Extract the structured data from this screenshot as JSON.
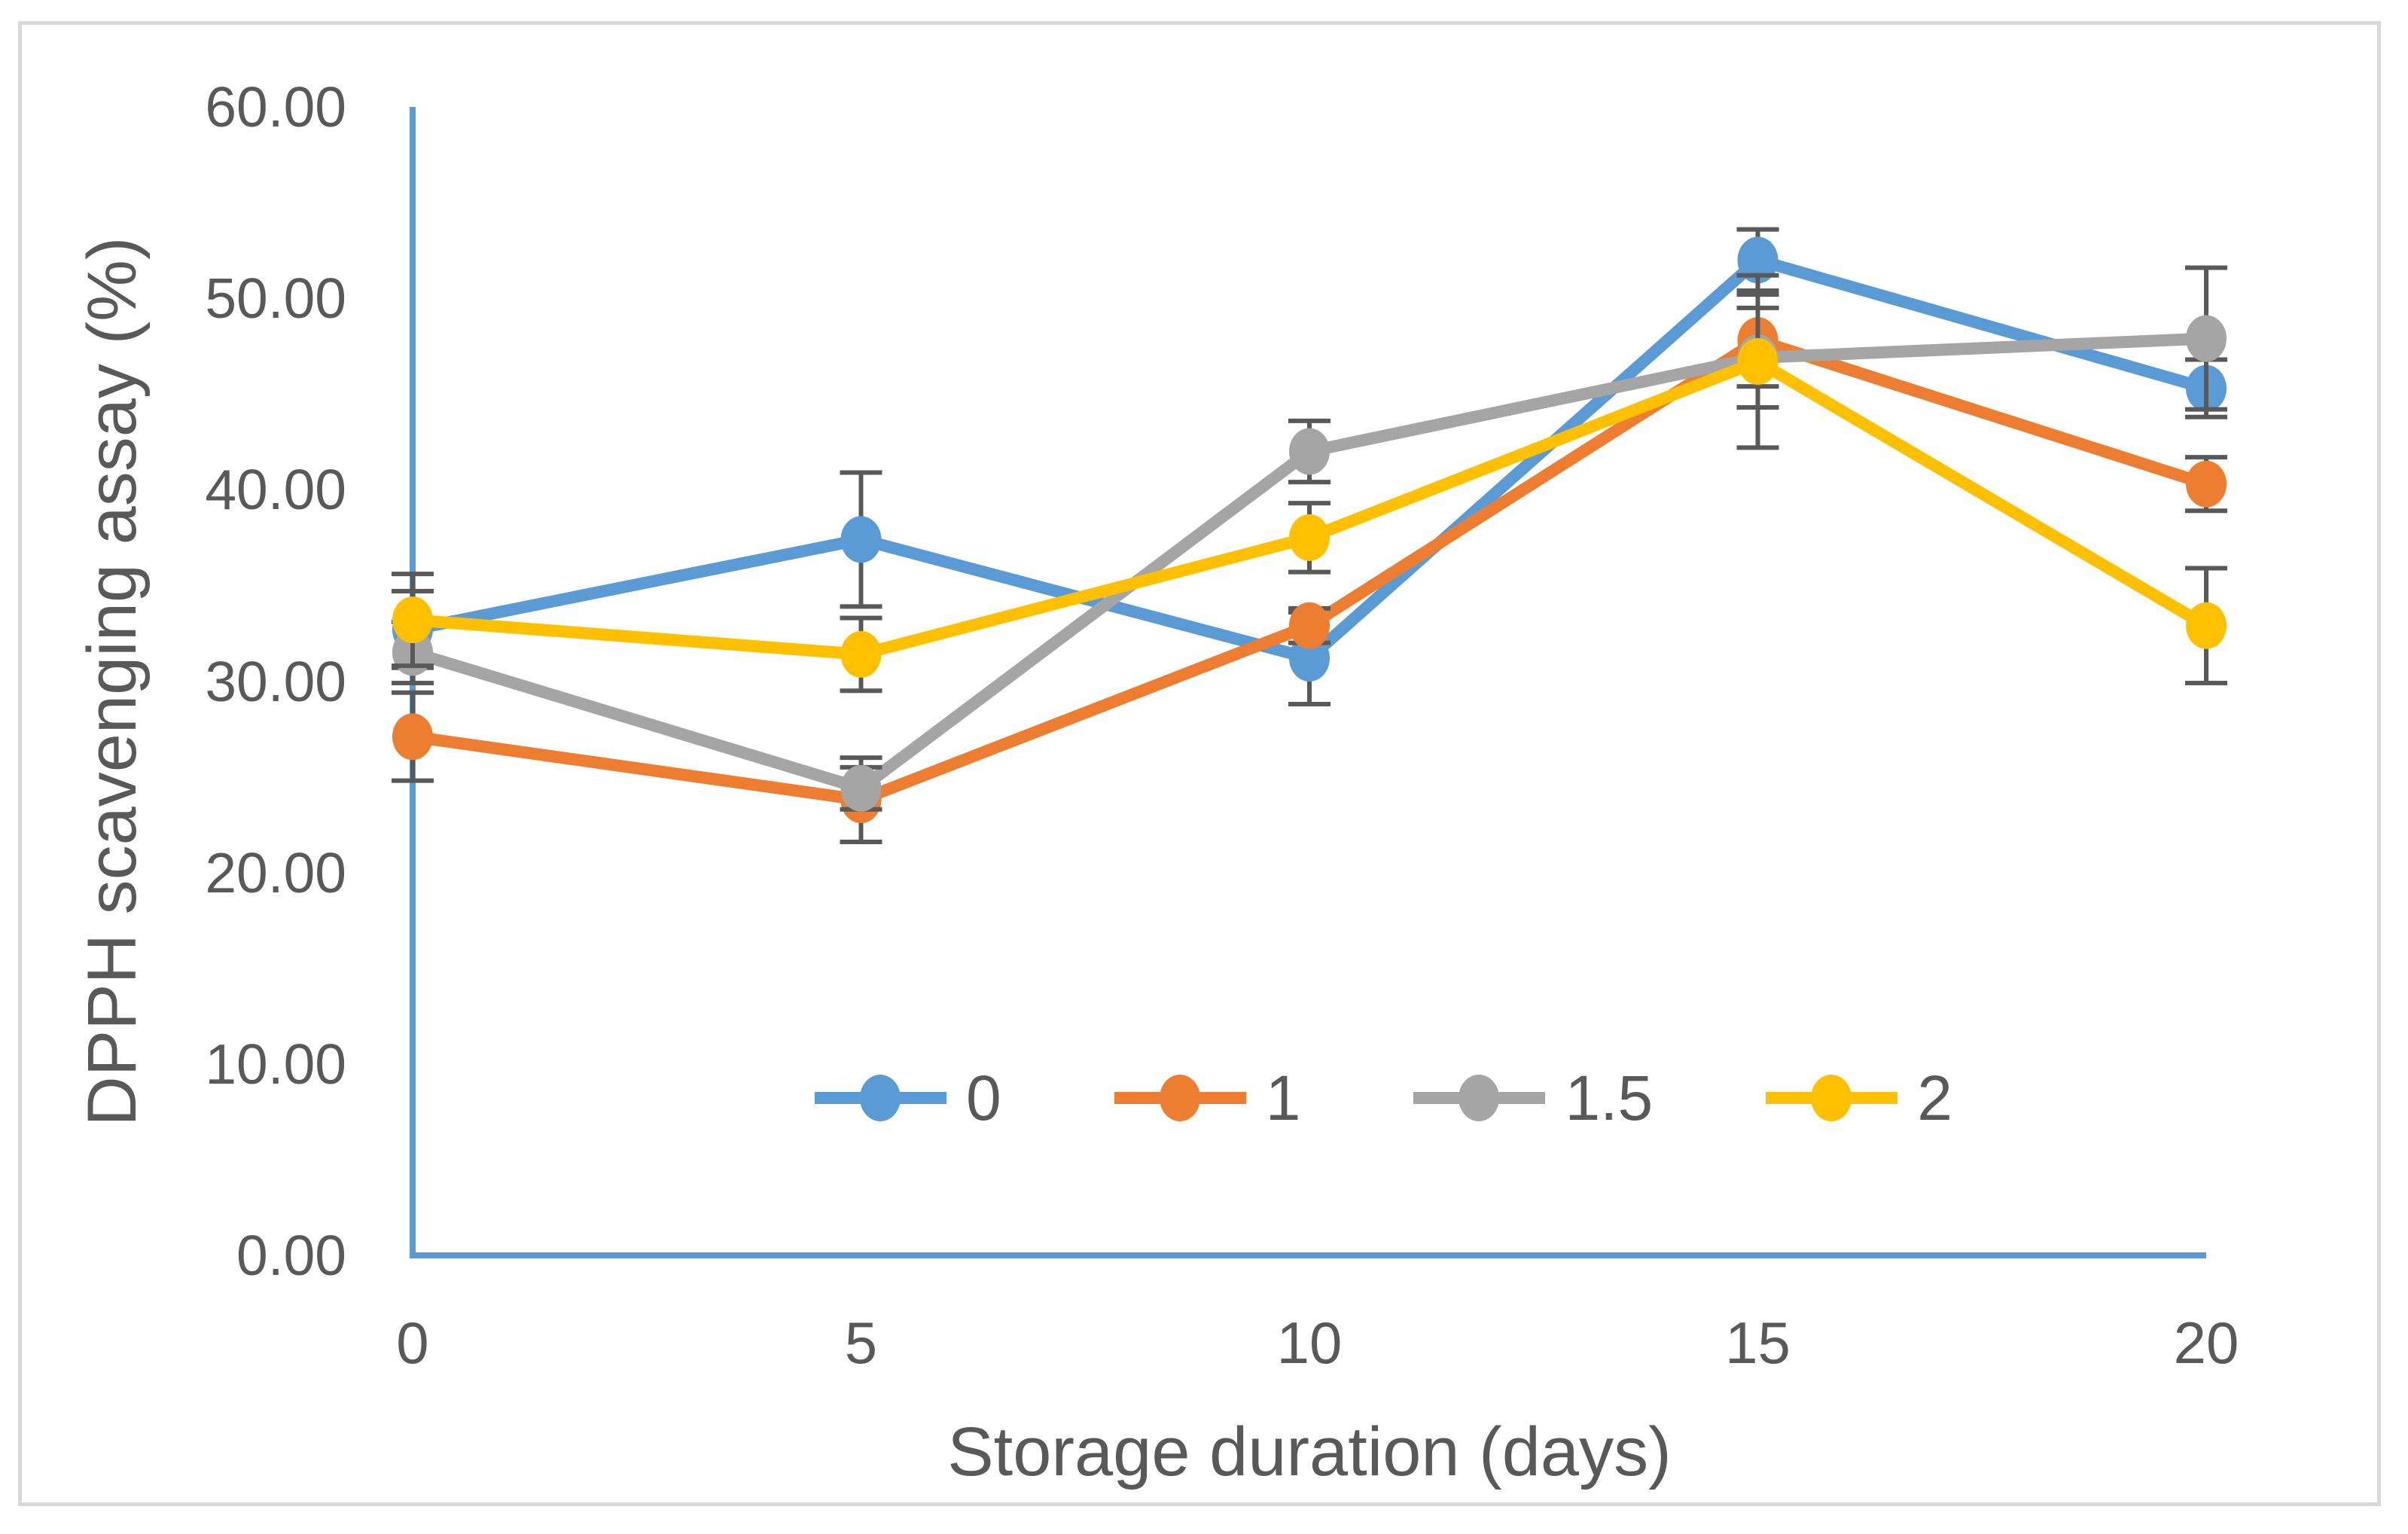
{
  "chart_data": {
    "type": "line",
    "title": "",
    "xlabel": "Storage duration (days)",
    "ylabel": "DPPH scavenging assay (%)",
    "categories": [
      0,
      5,
      10,
      15,
      20
    ],
    "x_tick_labels": [
      "0",
      "5",
      "10",
      "15",
      "20"
    ],
    "y_tick_labels": [
      "0.00",
      "10.00",
      "20.00",
      "30.00",
      "40.00",
      "50.00",
      "60.00"
    ],
    "ylim": [
      0,
      60
    ],
    "y_tick_step": 10,
    "grid": "off",
    "legend_position": "inside-bottom-center",
    "error_bars": "y, with caps",
    "series": [
      {
        "name": "0",
        "color": "#5B9BD5",
        "values": [
          32.7,
          37.4,
          31.2,
          52.0,
          45.3
        ],
        "errors": [
          2.0,
          3.5,
          2.4,
          1.6,
          1.5
        ]
      },
      {
        "name": "1",
        "color": "#ED7D31",
        "values": [
          27.1,
          23.8,
          32.9,
          47.8,
          40.3
        ],
        "errors": [
          2.3,
          2.2,
          0.9,
          2.4,
          1.4
        ]
      },
      {
        "name": "1.5",
        "color": "#A5A5A5",
        "values": [
          31.5,
          24.4,
          42.0,
          46.9,
          47.9
        ],
        "errors": [
          1.6,
          1.1,
          1.6,
          2.6,
          3.7
        ]
      },
      {
        "name": "2",
        "color": "#FFC000",
        "values": [
          33.2,
          31.4,
          37.5,
          46.7,
          32.9
        ],
        "errors": [
          2.4,
          1.9,
          1.8,
          4.5,
          3.0
        ]
      }
    ],
    "axis_line_color": "#5B9BD5",
    "error_bar_color": "#595959",
    "text_color": "#595959",
    "figure_border_color": "#D9D9D9"
  }
}
